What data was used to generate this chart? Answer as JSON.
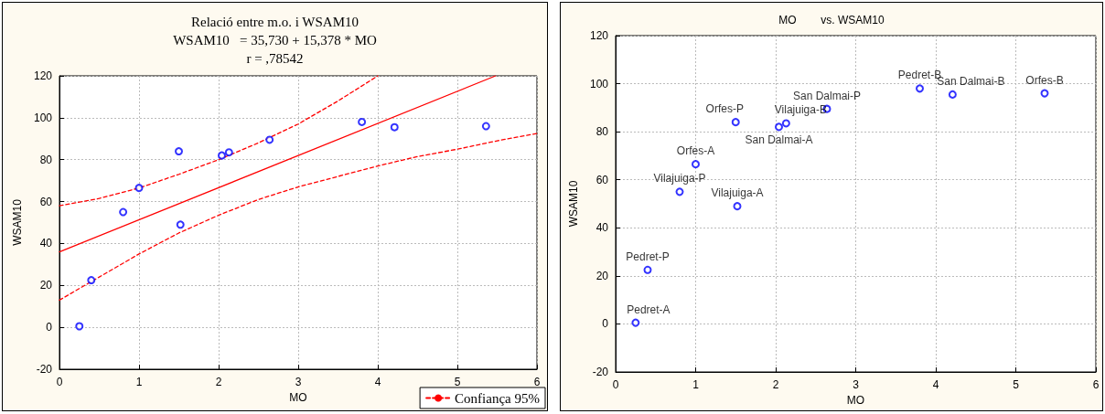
{
  "chart_data": [
    {
      "type": "scatter",
      "title": "Relació entre m.o. i WSAM10",
      "subtitle": "WSAM10   = 35,730 + 15,378 * MO",
      "annotations": [
        "r = ,78542"
      ],
      "xlabel": "MO",
      "ylabel": "WSAM10",
      "xlim": [
        0,
        6
      ],
      "xticks": [
        0,
        1,
        2,
        3,
        4,
        5,
        6
      ],
      "ylim": [
        -20,
        120
      ],
      "yticks": [
        -20,
        0,
        20,
        40,
        60,
        80,
        100,
        120
      ],
      "grid": true,
      "legend": "bottom right",
      "series": [
        {
          "marker": "circle",
          "color": "#0000ff",
          "x": [
            0.25,
            0.4,
            0.8,
            1.0,
            1.5,
            1.52,
            2.04,
            2.13,
            2.64,
            3.8,
            4.21,
            5.36
          ],
          "values": [
            0.5,
            22.5,
            55,
            66.5,
            84,
            49,
            82,
            83.5,
            89.5,
            98,
            95.5,
            96
          ]
        },
        {
          "type": "line",
          "marker": "none",
          "color": "#ff0000",
          "line_style": "solid",
          "x": [
            0,
            5.48
          ],
          "values": [
            36,
            120
          ]
        },
        {
          "type": "line",
          "marker": "none",
          "name": "Confiança 95%",
          "color": "#ff0000",
          "line_style": "dashed",
          "x": [
            0,
            0.5,
            1,
            1.5,
            2,
            2.5,
            3,
            3.5,
            4
          ],
          "values": [
            58,
            61.5,
            66.5,
            73,
            80,
            88,
            97,
            108,
            120
          ]
        },
        {
          "type": "line",
          "marker": "none",
          "color": "#ff0000",
          "line_style": "dashed",
          "x": [
            0,
            0.5,
            1,
            1.5,
            2,
            2.5,
            3,
            3.5,
            4,
            4.5,
            5,
            5.5,
            6
          ],
          "values": [
            13,
            24,
            35,
            45,
            53.5,
            61,
            67,
            72,
            77,
            81.5,
            85,
            89,
            92.5
          ]
        }
      ]
    },
    {
      "type": "scatter",
      "title": "MO        vs. WSAM10",
      "xlabel": "MO",
      "ylabel": "WSAM10",
      "xlim": [
        0,
        6
      ],
      "xticks": [
        0,
        1,
        2,
        3,
        4,
        5,
        6
      ],
      "ylim": [
        -20,
        120
      ],
      "yticks": [
        -20,
        0,
        20,
        40,
        60,
        80,
        100,
        120
      ],
      "grid": true,
      "series": [
        {
          "marker": "circle",
          "color": "#0000ff",
          "x": [
            0.25,
            0.4,
            0.8,
            1.0,
            1.5,
            1.52,
            2.04,
            2.13,
            2.64,
            3.8,
            4.21,
            5.36
          ],
          "values": [
            0.5,
            22.5,
            55,
            66.5,
            84,
            49,
            82,
            83.5,
            89.5,
            98,
            95.5,
            96
          ],
          "value_labels": [
            "Pedret-A",
            "Pedret-P",
            "Vilajuiga-P",
            "Orfes-A",
            "Orfes-P",
            "Vilajuiga-A",
            "San Dalmai-A",
            "Vilajuiga-B",
            "San Dalmai-P",
            "Pedret-B",
            "San Dalmai-B",
            "Orfes-B"
          ]
        }
      ]
    }
  ]
}
